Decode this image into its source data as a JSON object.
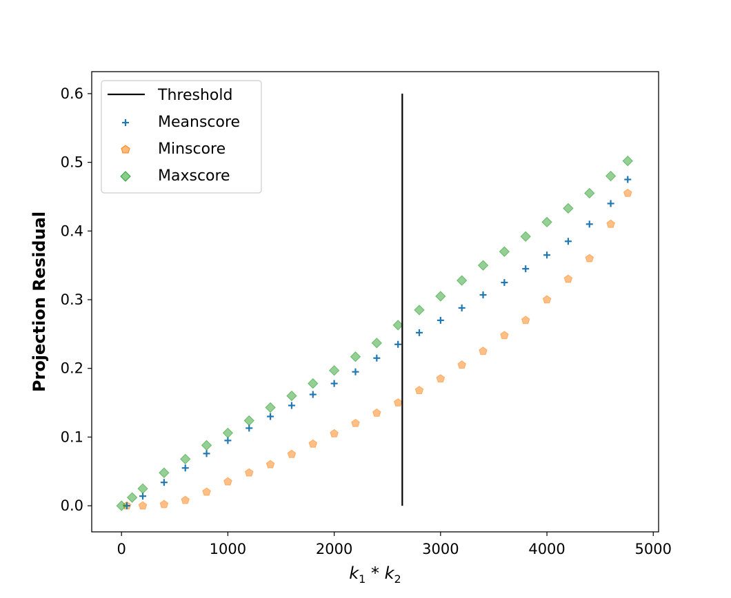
{
  "chart_data": {
    "type": "scatter",
    "title": "",
    "xlabel": "k1 * k2",
    "xlabel_main": "k",
    "xlabel_sub1": "1",
    "xlabel_op": " * ",
    "xlabel_sub2": "2",
    "ylabel": "Projection Residual",
    "xlim": [
      -280,
      5050
    ],
    "ylim": [
      -0.038,
      0.632
    ],
    "xticks": [
      0,
      1000,
      2000,
      3000,
      4000,
      5000
    ],
    "xtick_labels": [
      "0",
      "1000",
      "2000",
      "3000",
      "4000",
      "5000"
    ],
    "yticks": [
      0.0,
      0.1,
      0.2,
      0.3,
      0.4,
      0.5,
      0.6
    ],
    "ytick_labels": [
      "0.0",
      "0.1",
      "0.2",
      "0.3",
      "0.4",
      "0.5",
      "0.6"
    ],
    "grid": false,
    "legend_position": "top-left",
    "threshold": {
      "name": "Threshold",
      "x": 2640,
      "y_from": 0.0,
      "y_to": 0.6,
      "color": "#000000"
    },
    "series": [
      {
        "name": "Meanscore",
        "marker": "plus",
        "color": "#1f77b4",
        "x": [
          50,
          200,
          400,
          600,
          800,
          1000,
          1200,
          1400,
          1600,
          1800,
          2000,
          2200,
          2400,
          2600,
          2800,
          3000,
          3200,
          3400,
          3600,
          3800,
          4000,
          4200,
          4400,
          4600,
          4760
        ],
        "y": [
          0.0,
          0.014,
          0.034,
          0.055,
          0.076,
          0.095,
          0.113,
          0.13,
          0.146,
          0.162,
          0.178,
          0.195,
          0.215,
          0.235,
          0.252,
          0.27,
          0.288,
          0.307,
          0.325,
          0.345,
          0.365,
          0.385,
          0.41,
          0.44,
          0.475
        ]
      },
      {
        "name": "Minscore",
        "marker": "pentagon",
        "color": "#ff7f0e",
        "x": [
          50,
          200,
          400,
          600,
          800,
          1000,
          1200,
          1400,
          1600,
          1800,
          2000,
          2200,
          2400,
          2600,
          2800,
          3000,
          3200,
          3400,
          3600,
          3800,
          4000,
          4200,
          4400,
          4600,
          4760
        ],
        "y": [
          0.0,
          0.0,
          0.002,
          0.008,
          0.02,
          0.035,
          0.048,
          0.06,
          0.075,
          0.09,
          0.105,
          0.12,
          0.135,
          0.15,
          0.168,
          0.185,
          0.205,
          0.225,
          0.248,
          0.27,
          0.3,
          0.33,
          0.36,
          0.41,
          0.455
        ]
      },
      {
        "name": "Maxscore",
        "marker": "diamond",
        "color": "#2ca02c",
        "x": [
          0,
          100,
          200,
          400,
          600,
          800,
          1000,
          1200,
          1400,
          1600,
          1800,
          2000,
          2200,
          2400,
          2600,
          2800,
          3000,
          3200,
          3400,
          3600,
          3800,
          4000,
          4200,
          4400,
          4600,
          4760
        ],
        "y": [
          0.0,
          0.012,
          0.025,
          0.048,
          0.068,
          0.088,
          0.106,
          0.124,
          0.143,
          0.16,
          0.178,
          0.197,
          0.217,
          0.237,
          0.263,
          0.285,
          0.305,
          0.328,
          0.35,
          0.37,
          0.392,
          0.413,
          0.433,
          0.455,
          0.48,
          0.502
        ]
      }
    ]
  }
}
